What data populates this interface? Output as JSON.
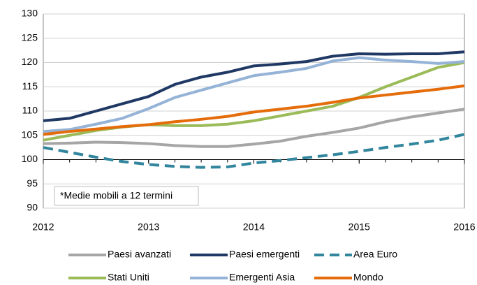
{
  "chart_data": {
    "type": "line",
    "annotation": "*Medie mobili a 12 termini",
    "x": [
      2012,
      2012.25,
      2012.5,
      2012.75,
      2013,
      2013.25,
      2013.5,
      2013.75,
      2014,
      2014.25,
      2014.5,
      2014.75,
      2015,
      2015.25,
      2015.5,
      2015.75,
      2016
    ],
    "xlim": [
      2012,
      2016
    ],
    "xticks": [
      2012,
      2013,
      2014,
      2015,
      2016
    ],
    "ylim": [
      90,
      130
    ],
    "yticks": [
      90,
      95,
      100,
      105,
      110,
      115,
      120,
      125,
      130
    ],
    "grid": true,
    "series": [
      {
        "name": "Paesi avanzati",
        "color": "#a6a6a6",
        "dashed": false,
        "values": [
          103.3,
          103.4,
          103.6,
          103.5,
          103.3,
          102.9,
          102.7,
          102.7,
          103.2,
          103.8,
          104.8,
          105.6,
          106.5,
          107.8,
          108.8,
          109.6,
          110.4
        ]
      },
      {
        "name": "Paesi emergenti",
        "color": "#1f3864",
        "dashed": false,
        "values": [
          108,
          108.5,
          110,
          111.5,
          113,
          115.5,
          117,
          118,
          119.3,
          119.7,
          120.2,
          121.3,
          121.8,
          121.7,
          121.8,
          121.8,
          122.2
        ]
      },
      {
        "name": "Area Euro",
        "color": "#31859c",
        "dashed": true,
        "values": [
          102.5,
          101.5,
          100.5,
          99.6,
          99,
          98.6,
          98.4,
          98.5,
          99.3,
          99.8,
          100.4,
          101,
          101.7,
          102.5,
          103.2,
          104,
          105.2
        ]
      },
      {
        "name": "Stati Uniti",
        "color": "#9bbb59",
        "dashed": false,
        "values": [
          104,
          105,
          106,
          106.7,
          107.2,
          107,
          107,
          107.3,
          108,
          109,
          110,
          111,
          112.8,
          115,
          117,
          119,
          120
        ]
      },
      {
        "name": "Emergenti Asia",
        "color": "#95b3d7",
        "dashed": false,
        "values": [
          105.8,
          106.2,
          107.3,
          108.5,
          110.5,
          112.8,
          114.3,
          115.8,
          117.3,
          118,
          118.8,
          120.3,
          121,
          120.5,
          120.2,
          119.8,
          120.2
        ]
      },
      {
        "name": "Mondo",
        "color": "#e46c0a",
        "dashed": false,
        "values": [
          105.2,
          105.8,
          106.3,
          106.8,
          107.2,
          107.8,
          108.3,
          108.9,
          109.8,
          110.4,
          111,
          111.8,
          112.7,
          113.3,
          113.9,
          114.5,
          115.2
        ]
      }
    ]
  }
}
